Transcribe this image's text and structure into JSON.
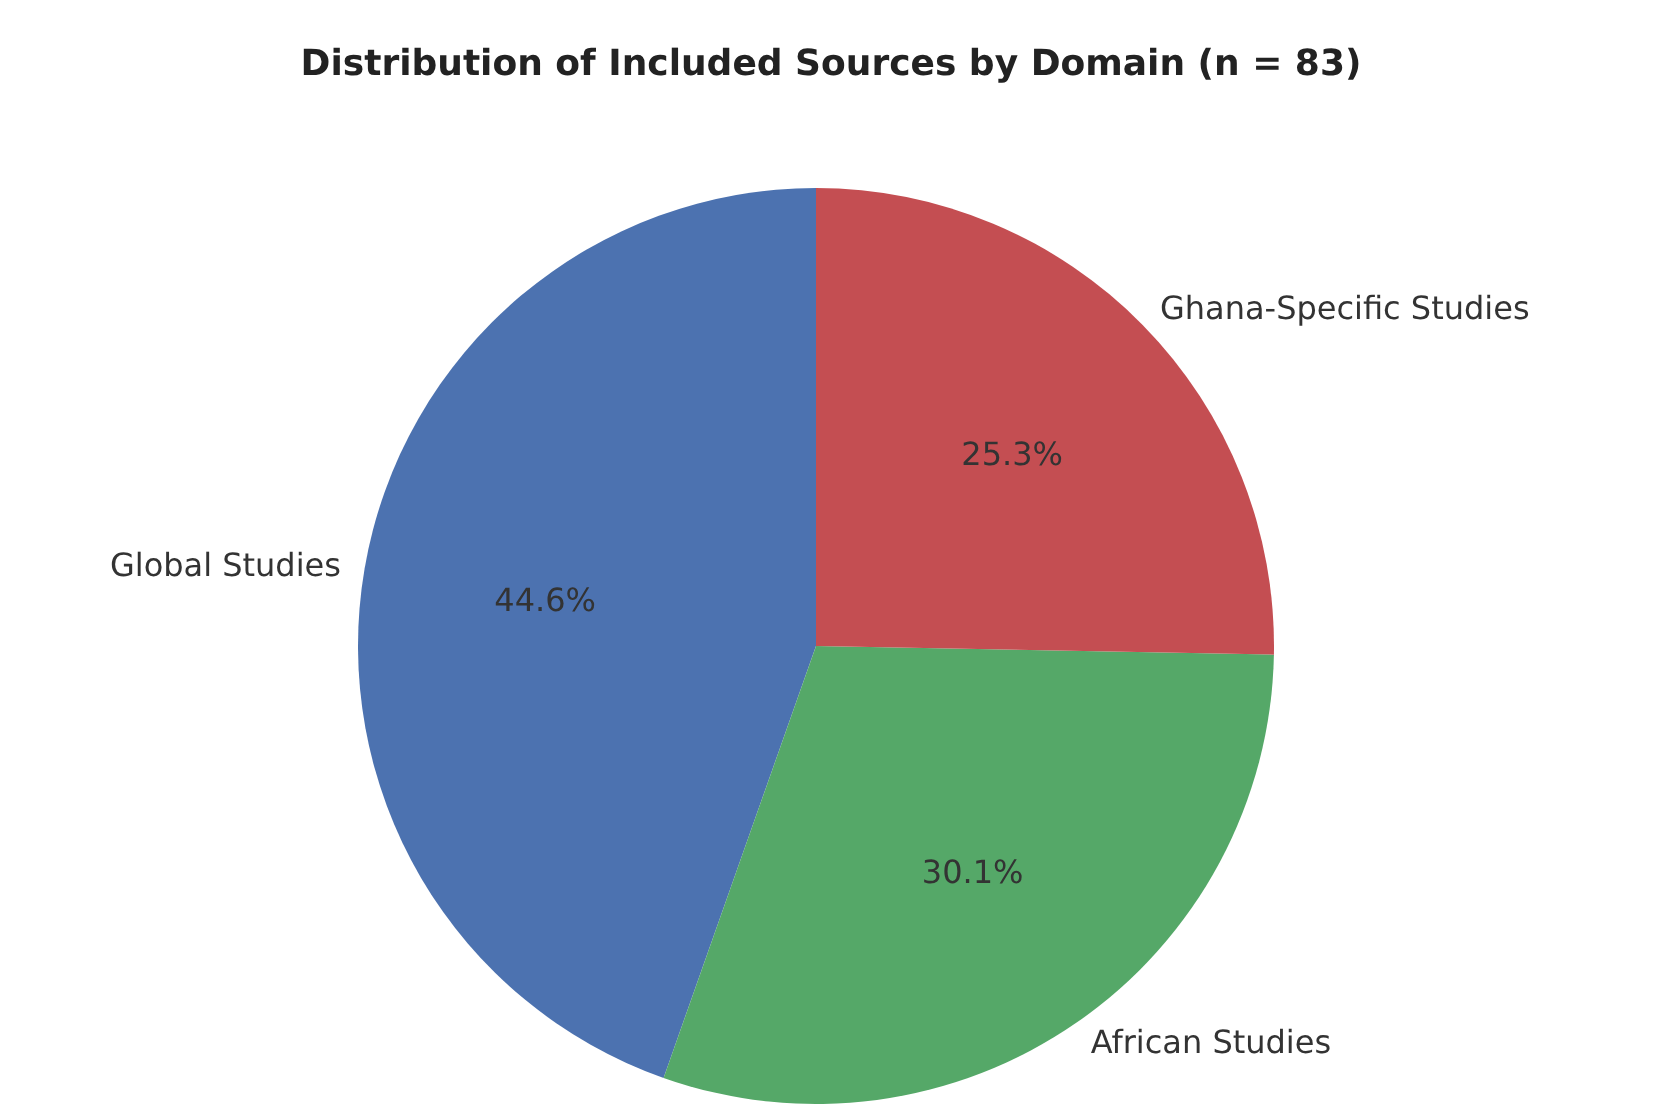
{
  "chart_data": {
    "type": "pie",
    "title": "Distribution of Included Sources by Domain (n = 83)",
    "categories": [
      "Global Studies",
      "African Studies",
      "Ghana-Specific Studies"
    ],
    "values": [
      44.6,
      30.1,
      25.3
    ],
    "colors": [
      "#4c72b0",
      "#55a868",
      "#c44e52"
    ],
    "value_labels": [
      "44.6%",
      "30.1%",
      "25.3%"
    ],
    "legend": false
  }
}
